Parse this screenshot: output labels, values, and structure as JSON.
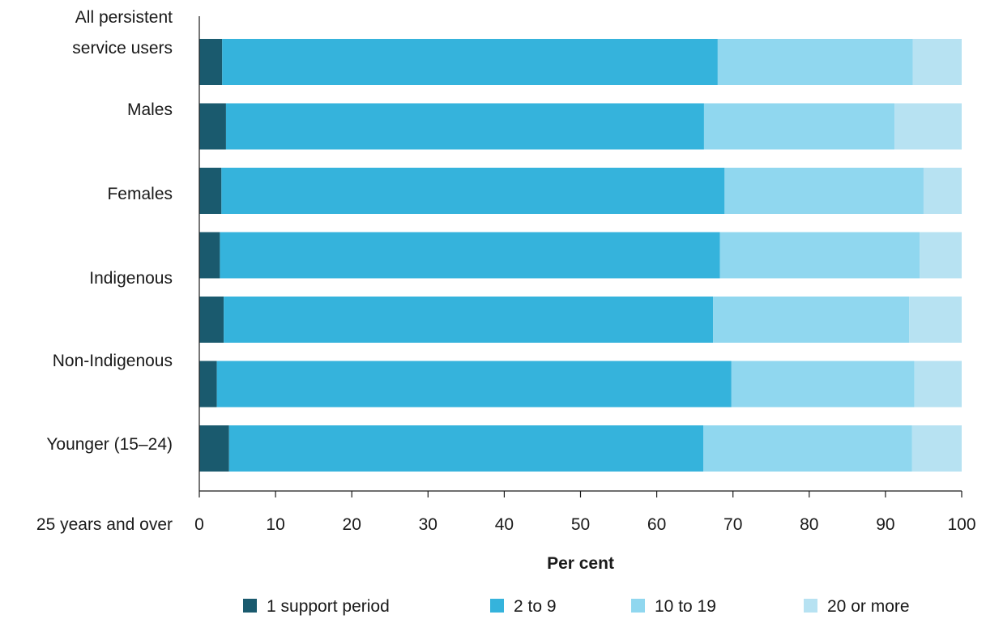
{
  "chart_data": {
    "type": "bar",
    "orientation": "horizontal",
    "stacked": true,
    "xlabel": "Per cent",
    "xlim": [
      0,
      100
    ],
    "xticks": [
      0,
      10,
      20,
      30,
      40,
      50,
      60,
      70,
      80,
      90,
      100
    ],
    "grid": false,
    "legend_position": "bottom",
    "category_label_lines": [
      [
        "All persistent",
        "service users"
      ],
      [
        "Males"
      ],
      [
        "Females"
      ],
      [
        "Indigenous"
      ],
      [
        "Non-Indigenous"
      ],
      [
        "Younger (15–24)"
      ],
      [
        "25 years and over"
      ]
    ],
    "bars": 7,
    "series": [
      {
        "name": "1 support period",
        "color": "#1a5a6e",
        "values": [
          3.0,
          3.5,
          2.9,
          2.7,
          3.2,
          2.3,
          3.9
        ]
      },
      {
        "name": "2 to 9",
        "color": "#35b3dc",
        "values": [
          65.0,
          62.7,
          66.0,
          65.6,
          64.2,
          67.5,
          62.2
        ]
      },
      {
        "name": "10 to 19",
        "color": "#90d7ef",
        "values": [
          25.6,
          25.0,
          26.1,
          26.2,
          25.7,
          24.0,
          27.4
        ]
      },
      {
        "name": "20 or more",
        "color": "#b7e2f2",
        "values": [
          6.4,
          8.8,
          5.0,
          5.5,
          6.9,
          6.2,
          6.5
        ]
      }
    ]
  }
}
